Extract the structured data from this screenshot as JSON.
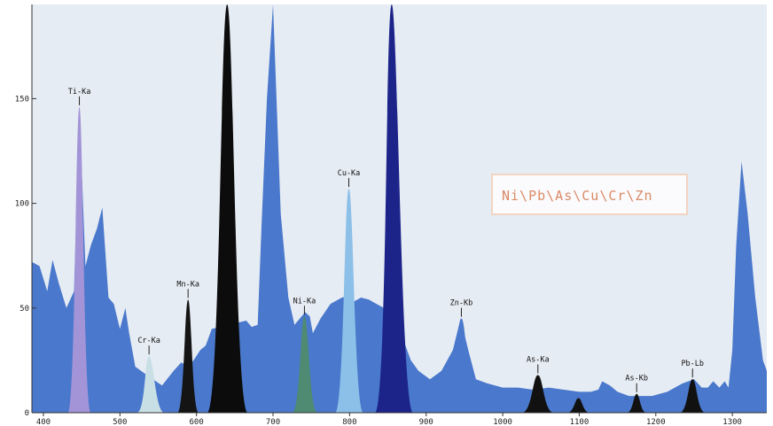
{
  "chart_data": {
    "type": "area",
    "title": "",
    "xlabel": "",
    "ylabel": "",
    "xlim": [
      385,
      1345
    ],
    "ylim": [
      0,
      195
    ],
    "x_ticks": [
      400,
      500,
      600,
      700,
      800,
      900,
      1000,
      1100,
      1200,
      1300
    ],
    "y_ticks": [
      50,
      100,
      150
    ],
    "grid": false,
    "legend": {
      "text": "Ni\\Pb\\As\\Cu\\Cr\\Zn",
      "position": "center-right"
    },
    "colors": {
      "plot_bg": "#e6ecf3",
      "spectrum": "#4a78cc",
      "ti": "#a394d8",
      "cr": "#c8dfe6",
      "mn": "#141414",
      "black_peak": "#0c0c0c",
      "ni": "#4f8a72",
      "cu": "#8cc0e8",
      "navy_peak": "#1c248a",
      "zn": "#4a78cc",
      "dark_peaks": "#111111",
      "legend_border": "#f2d4c2",
      "legend_text": "#d98a66"
    },
    "spectrum": {
      "x": [
        385,
        395,
        405,
        412,
        420,
        430,
        440,
        447,
        455,
        462,
        470,
        477,
        485,
        492,
        500,
        507,
        512,
        520,
        535,
        555,
        570,
        580,
        590,
        598,
        605,
        612,
        620,
        665,
        672,
        680,
        685,
        692,
        700,
        710,
        720,
        728,
        735,
        742,
        748,
        752,
        762,
        775,
        790,
        800,
        805,
        815,
        825,
        835,
        845,
        855,
        860,
        870,
        880,
        890,
        905,
        920,
        935,
        945,
        955,
        965,
        980,
        1000,
        1020,
        1040,
        1060,
        1080,
        1100,
        1115,
        1125,
        1130,
        1140,
        1150,
        1165,
        1180,
        1195,
        1215,
        1235,
        1250,
        1260,
        1268,
        1275,
        1283,
        1290,
        1295,
        1300,
        1305,
        1312,
        1320,
        1330,
        1340,
        1345
      ],
      "y": [
        72,
        70,
        58,
        73,
        62,
        50,
        58,
        146,
        70,
        80,
        88,
        98,
        55,
        52,
        40,
        50,
        38,
        22,
        18,
        13,
        20,
        24,
        22,
        26,
        30,
        32,
        40,
        44,
        41,
        42,
        90,
        150,
        195,
        95,
        55,
        42,
        45,
        48,
        46,
        38,
        45,
        52,
        55,
        56,
        53,
        55,
        54,
        52,
        50,
        48,
        45,
        35,
        25,
        20,
        16,
        20,
        30,
        45,
        30,
        16,
        14,
        12,
        12,
        11,
        12,
        11,
        10,
        10,
        11,
        15,
        13,
        10,
        8,
        8,
        8,
        10,
        14,
        16,
        12,
        12,
        15,
        12,
        15,
        12,
        30,
        80,
        120,
        95,
        55,
        25,
        20
      ],
      "label": ""
    },
    "peaks": [
      {
        "name": "Ti-Ka",
        "x": 447,
        "y": 146,
        "range": [
          432,
          462
        ],
        "color": "#a394d8",
        "labeled": true
      },
      {
        "name": "Cr-Ka",
        "x": 538,
        "y": 27,
        "range": [
          522,
          558
        ],
        "color": "#c8dfe6",
        "labeled": true
      },
      {
        "name": "Mn-Ka",
        "x": 589,
        "y": 54,
        "range": [
          575,
          603
        ],
        "color": "#141414",
        "labeled": true
      },
      {
        "name": "",
        "x": 640,
        "y": 195,
        "range": [
          614,
          667
        ],
        "color": "#0c0c0c",
        "labeled": false
      },
      {
        "name": "Ni-Ka",
        "x": 741,
        "y": 46,
        "range": [
          725,
          758
        ],
        "color": "#4f8a72",
        "labeled": true
      },
      {
        "name": "Cu-Ka",
        "x": 799,
        "y": 107,
        "range": [
          781,
          818
        ],
        "color": "#8cc0e8",
        "labeled": true
      },
      {
        "name": "",
        "x": 855,
        "y": 195,
        "range": [
          833,
          883
        ],
        "color": "#1c248a",
        "labeled": false
      },
      {
        "name": "Zn-Kb",
        "x": 946,
        "y": 45,
        "range": [
          925,
          968
        ],
        "color": "#4a78cc",
        "labeled": true
      },
      {
        "name": "As-Ka",
        "x": 1046,
        "y": 18,
        "range": [
          1025,
          1067
        ],
        "color": "#111111",
        "labeled": true
      },
      {
        "name": "",
        "x": 1099,
        "y": 7,
        "range": [
          1084,
          1114
        ],
        "color": "#111111",
        "labeled": false
      },
      {
        "name": "As-Kb",
        "x": 1175,
        "y": 9,
        "range": [
          1162,
          1188
        ],
        "color": "#111111",
        "labeled": true
      },
      {
        "name": "Pb-Lb",
        "x": 1248,
        "y": 16,
        "range": [
          1231,
          1265
        ],
        "color": "#111111",
        "labeled": true
      }
    ]
  }
}
